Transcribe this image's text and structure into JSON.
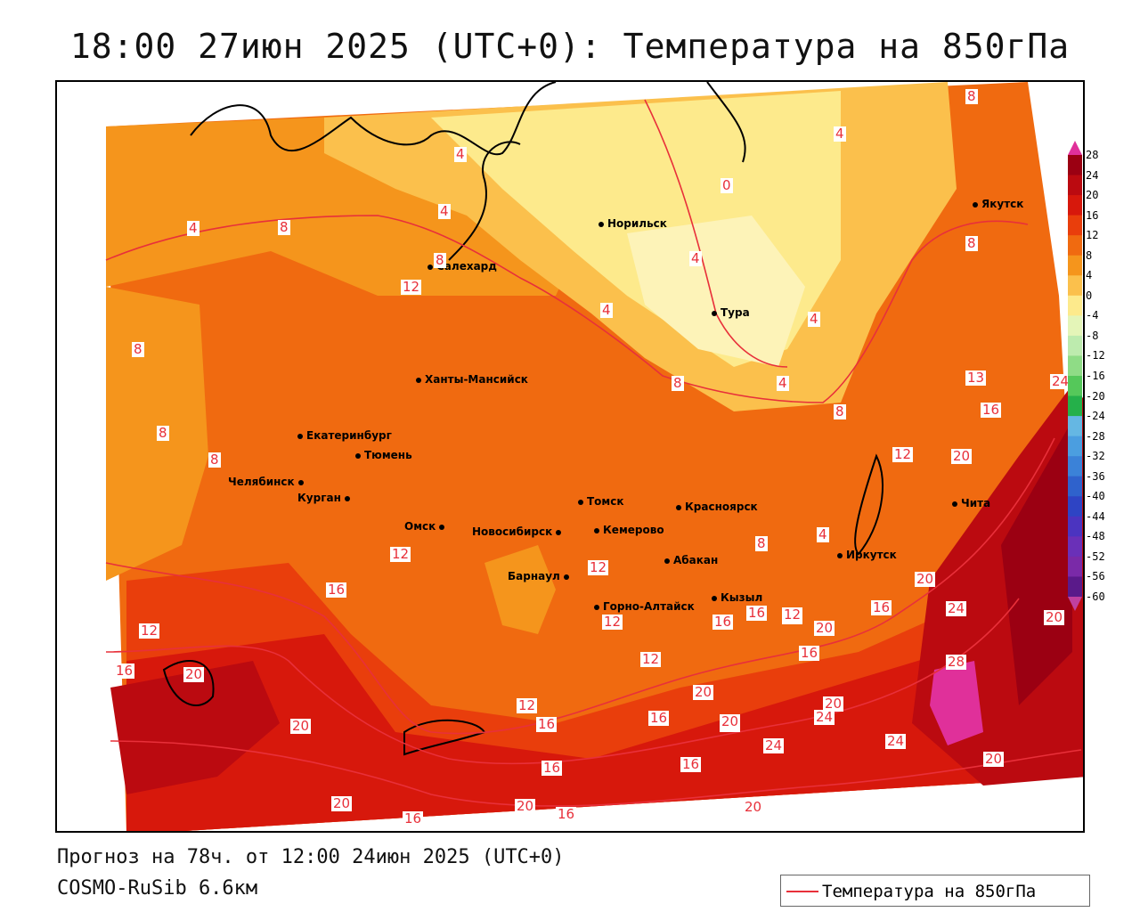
{
  "title": "18:00 27июн 2025 (UTC+0): Температура на 850гПа",
  "footer": {
    "forecast": "Прогноз на 78ч. от 12:00 24июн 2025 (UTC+0)",
    "model": "COSMO-RuSib 6.6км"
  },
  "legend": {
    "label": "Температура на 850гПа",
    "line_color": "#e8303a"
  },
  "colorbar": {
    "ticks": [
      "28",
      "24",
      "20",
      "16",
      "12",
      "8",
      "4",
      "0",
      "-4",
      "-8",
      "-12",
      "-16",
      "-20",
      "-24",
      "-28",
      "-32",
      "-36",
      "-40",
      "-44",
      "-48",
      "-52",
      "-56",
      "-60"
    ],
    "colors": [
      "#9b0012",
      "#bb0a10",
      "#d7180c",
      "#e93e0c",
      "#f06a10",
      "#f5951c",
      "#fbc04c",
      "#fdea8c",
      "#e4f5b8",
      "#bdebae",
      "#8fdc86",
      "#55c85a",
      "#25b04a",
      "#65b7e3",
      "#4b9ee0",
      "#3b82d8",
      "#2f62cc",
      "#2e44c4",
      "#4b34c0",
      "#6a30b8",
      "#7a2aa8",
      "#5a1a8a"
    ],
    "top_color": "#e0309a",
    "bottom_color": "#c040a0"
  },
  "cities": [
    {
      "name": "Норильск"
    },
    {
      "name": "Якутск"
    },
    {
      "name": "Салехард"
    },
    {
      "name": "Тура"
    },
    {
      "name": "Ханты-Мансийск"
    },
    {
      "name": "Екатеринбург"
    },
    {
      "name": "Тюмень"
    },
    {
      "name": "Челябинск"
    },
    {
      "name": "Курган"
    },
    {
      "name": "Омск"
    },
    {
      "name": "Новосибирск"
    },
    {
      "name": "Томск"
    },
    {
      "name": "Кемерово"
    },
    {
      "name": "Красноярск"
    },
    {
      "name": "Барнаул"
    },
    {
      "name": "Абакан"
    },
    {
      "name": "Иркутск"
    },
    {
      "name": "Чита"
    },
    {
      "name": "Горно-Алтайск"
    },
    {
      "name": "Кызыл"
    }
  ],
  "contour_labels": [
    "8",
    "4",
    "0",
    "4",
    "4",
    "4",
    "8",
    "4",
    "8",
    "4",
    "8",
    "12",
    "4",
    "4",
    "4",
    "8",
    "8",
    "8",
    "13",
    "24",
    "16",
    "8",
    "8",
    "12",
    "20",
    "16",
    "12",
    "12",
    "12",
    "8",
    "12",
    "20",
    "16",
    "12",
    "16",
    "12",
    "16",
    "20",
    "16",
    "12",
    "20",
    "24",
    "28",
    "20",
    "12",
    "16",
    "16",
    "20",
    "20",
    "24",
    "24",
    "20",
    "20",
    "24",
    "20",
    "16",
    "16",
    "20",
    "16",
    "20",
    "20",
    "16",
    "16",
    "20"
  ]
}
